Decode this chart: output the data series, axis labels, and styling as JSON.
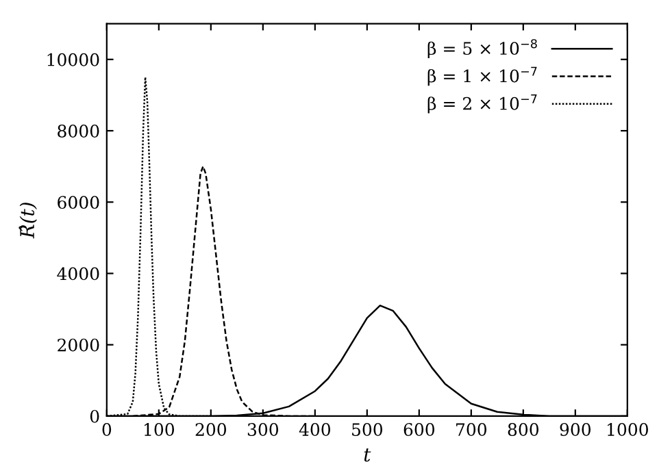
{
  "chart_data": {
    "type": "line",
    "xlabel": "t",
    "ylabel": "R̂(t)",
    "xlim": [
      0,
      1000
    ],
    "ylim": [
      0,
      11000
    ],
    "xticks": [
      0,
      100,
      200,
      300,
      400,
      500,
      600,
      700,
      800,
      900,
      1000
    ],
    "yticks": [
      0,
      2000,
      4000,
      6000,
      8000,
      10000
    ],
    "legend": "top right",
    "grid": false,
    "series": [
      {
        "name": "β = 5 × 10$^{−8}$",
        "color": "#000000",
        "line_style": "solid",
        "x": [
          0,
          200,
          250,
          300,
          350,
          400,
          425,
          450,
          475,
          500,
          525,
          550,
          575,
          600,
          625,
          650,
          700,
          750,
          800,
          850,
          900,
          1000
        ],
        "values": [
          0,
          0,
          20,
          80,
          270,
          700,
          1050,
          1550,
          2150,
          2750,
          3100,
          2950,
          2500,
          1900,
          1350,
          900,
          350,
          120,
          40,
          0,
          0,
          0
        ]
      },
      {
        "name": "β = 1 × 10$^{−7}$",
        "color": "#000000",
        "line_style": "dashed",
        "x": [
          50,
          100,
          120,
          140,
          150,
          160,
          170,
          180,
          185,
          190,
          200,
          210,
          220,
          230,
          240,
          250,
          260,
          280,
          300,
          350,
          400
        ],
        "values": [
          0,
          60,
          250,
          1100,
          2100,
          3600,
          5200,
          6800,
          7000,
          6800,
          5800,
          4500,
          3200,
          2100,
          1300,
          750,
          400,
          120,
          30,
          0,
          0
        ]
      },
      {
        "name": "β = 2 × 10$^{−7}$",
        "color": "#000000",
        "line_style": "dotted",
        "x": [
          0,
          40,
          50,
          55,
          60,
          65,
          70,
          74,
          78,
          82,
          86,
          90,
          95,
          100,
          110,
          120,
          140,
          200
        ],
        "values": [
          0,
          60,
          400,
          1200,
          2800,
          5200,
          8000,
          9500,
          8800,
          7000,
          5000,
          3300,
          1800,
          900,
          220,
          50,
          0,
          0
        ]
      }
    ]
  }
}
